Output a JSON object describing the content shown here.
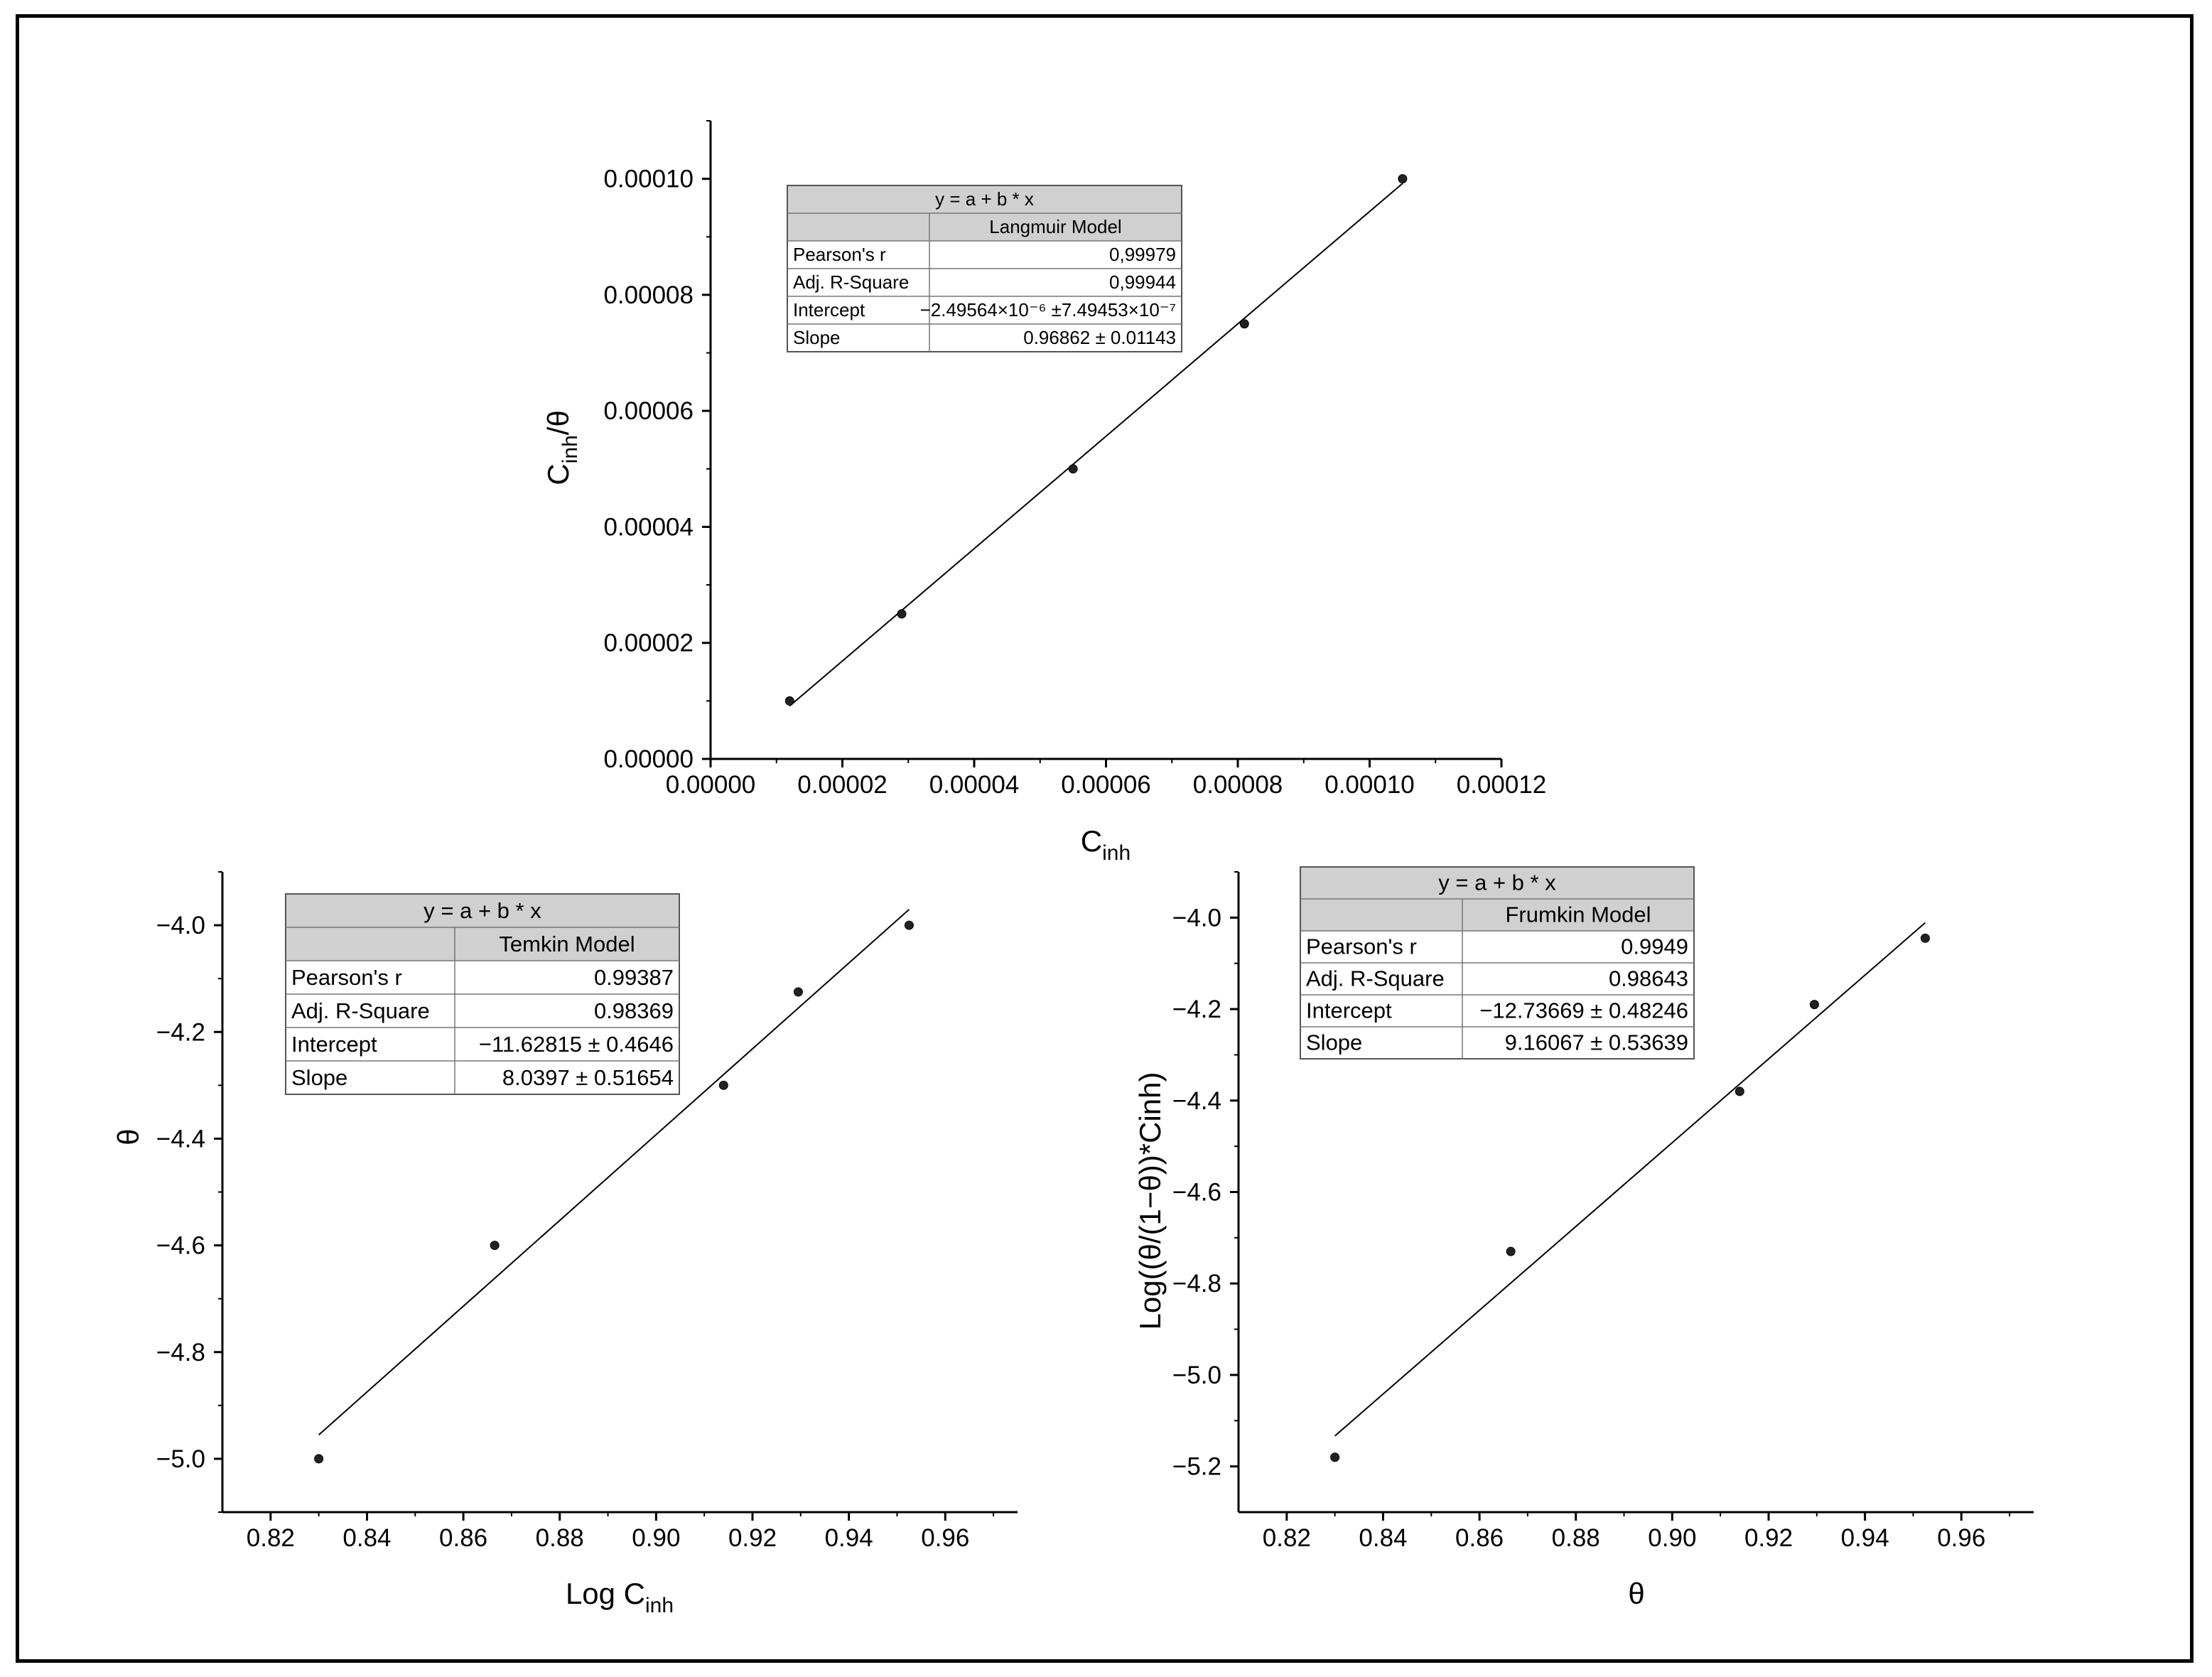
{
  "chart_data": [
    {
      "type": "scatter",
      "title": "",
      "xlabel": "C",
      "xlabel_sub": "inh",
      "ylabel": "C",
      "ylabel_sub": "inh",
      "ylabel_tail": "/θ",
      "xlim": [
        0,
        0.00012
      ],
      "ylim": [
        0,
        0.00011
      ],
      "xticks": [
        "0.00000",
        "0.00002",
        "0.00004",
        "0.00006",
        "0.00008",
        "0.00010",
        "0.00012"
      ],
      "yticks": [
        "0.00000",
        "0.00002",
        "0.00004",
        "0.00006",
        "0.00008",
        "0.00010"
      ],
      "series": [
        {
          "x": [
            1.2e-05,
            2.9e-05,
            5.5e-05,
            8.1e-05,
            0.000105
          ],
          "y": [
            1e-05,
            2.5e-05,
            5e-05,
            7.5e-05,
            0.0001
          ]
        }
      ],
      "fit": {
        "intercept": -2.49564e-06,
        "slope": 0.96862,
        "x_range": [
          1.2e-05,
          0.000105
        ]
      },
      "stats_table": {
        "equation": "y = a + b * x",
        "model": "Langmuir Model",
        "rows": [
          {
            "label": "Pearson's r",
            "value": "0,99979"
          },
          {
            "label": "Adj. R-Square",
            "value": "0,99944"
          },
          {
            "label": "Intercept",
            "value": "−2.49564×10⁻⁶ ±7.49453×10⁻⁷"
          },
          {
            "label": "Slope",
            "value": "0.96862 ± 0.01143"
          }
        ]
      }
    },
    {
      "type": "scatter",
      "title": "",
      "xlabel": "Log C",
      "xlabel_sub": "inh",
      "ylabel": "θ",
      "ylabel_sub": "",
      "ylabel_tail": "",
      "xlim": [
        0.81,
        0.975
      ],
      "ylim": [
        -5.1,
        -3.9
      ],
      "xticks": [
        "0.82",
        "0.84",
        "0.86",
        "0.88",
        "0.90",
        "0.92",
        "0.94",
        "0.96"
      ],
      "yticks": [
        "−5.0",
        "−4.8",
        "−4.6",
        "−4.4",
        "−4.2",
        "−4.0"
      ],
      "series": [
        {
          "x": [
            0.83,
            0.8665,
            0.914,
            0.9295,
            0.9525
          ],
          "y": [
            -5.0,
            -4.6,
            -4.3,
            -4.125,
            -4.0
          ]
        }
      ],
      "fit": {
        "intercept": -11.62815,
        "slope": 8.0397,
        "x_range": [
          0.83,
          0.9525
        ]
      },
      "stats_table": {
        "equation": "y = a + b * x",
        "model": "Temkin Model",
        "rows": [
          {
            "label": "Pearson's r",
            "value": "0.99387"
          },
          {
            "label": "Adj. R-Square",
            "value": "0.98369"
          },
          {
            "label": "Intercept",
            "value": "−11.62815 ± 0.4646"
          },
          {
            "label": "Slope",
            "value": "8.0397 ± 0.51654"
          }
        ]
      }
    },
    {
      "type": "scatter",
      "title": "",
      "xlabel": "θ",
      "xlabel_sub": "",
      "ylabel": "Log((θ/(1−θ))*Cinh)",
      "ylabel_sub": "",
      "ylabel_tail": "",
      "xlim": [
        0.81,
        0.975
      ],
      "ylim": [
        -5.3,
        -3.9
      ],
      "xticks": [
        "0.82",
        "0.84",
        "0.86",
        "0.88",
        "0.90",
        "0.92",
        "0.94",
        "0.96"
      ],
      "yticks": [
        "−5.2",
        "−5.0",
        "−4.8",
        "−4.6",
        "−4.4",
        "−4.2",
        "−4.0"
      ],
      "series": [
        {
          "x": [
            0.83,
            0.8665,
            0.914,
            0.9295,
            0.9525
          ],
          "y": [
            -5.18,
            -4.73,
            -4.38,
            -4.19,
            -4.045
          ]
        }
      ],
      "fit": {
        "intercept": -12.73669,
        "slope": 9.16067,
        "x_range": [
          0.83,
          0.9525
        ]
      },
      "stats_table": {
        "equation": "y = a + b * x",
        "model": "Frumkin Model",
        "rows": [
          {
            "label": "Pearson's r",
            "value": "0.9949"
          },
          {
            "label": "Adj. R-Square",
            "value": "0.98643"
          },
          {
            "label": "Intercept",
            "value": "−12.73669 ± 0.48246"
          },
          {
            "label": "Slope",
            "value": "9.16067 ± 0.53639"
          }
        ]
      }
    }
  ]
}
